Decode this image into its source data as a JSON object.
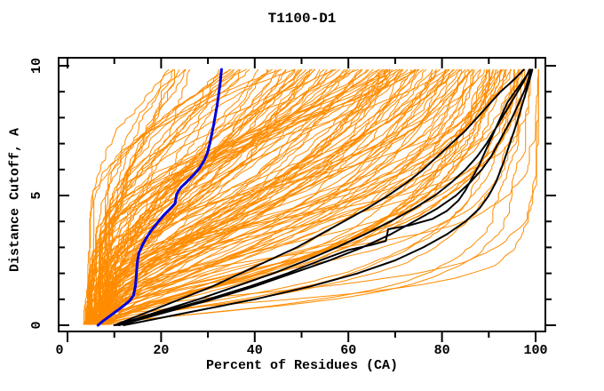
{
  "page": {
    "background": "#ffffff"
  },
  "chart_data": {
    "type": "line",
    "title": "T1100-D1",
    "xlabel": "Percent of Residues (CA)",
    "ylabel": "Distance Cutoff, A",
    "xlim": [
      -2,
      104
    ],
    "ylim": [
      -0.25,
      10.3
    ],
    "x_ticks_major": [
      0,
      20,
      40,
      60,
      80,
      100
    ],
    "x_tick_labels": [
      "0",
      "20",
      "40",
      "60",
      "80",
      "100"
    ],
    "x_ticks_minor": [
      10,
      30,
      50,
      70,
      90
    ],
    "y_ticks_major": [
      0,
      5,
      10
    ],
    "y_tick_labels": [
      "0",
      "5",
      "10"
    ],
    "y_ticks_minor": [
      1,
      2,
      3,
      4,
      6,
      7,
      8,
      9
    ],
    "grid": false,
    "legend": false,
    "frame_color": "#000000",
    "colors": {
      "ensemble": "#ff8c00",
      "highlight": "#000000",
      "reference": "#0000dd"
    },
    "series": [
      {
        "name": "black-model-curve-1",
        "color": "#000000",
        "width": 2,
        "points": [
          [
            10,
            0
          ],
          [
            20,
            0.5
          ],
          [
            30,
            1
          ],
          [
            39,
            1.5
          ],
          [
            47,
            2
          ],
          [
            54,
            2.5
          ],
          [
            60,
            2.9
          ],
          [
            65,
            3.1
          ],
          [
            68,
            3.25
          ],
          [
            68.5,
            3.7
          ],
          [
            73,
            3.85
          ],
          [
            78,
            4.1
          ],
          [
            81,
            4.4
          ],
          [
            83.5,
            4.8
          ],
          [
            85,
            5.2
          ],
          [
            86.5,
            5.7
          ],
          [
            88,
            6.2
          ],
          [
            89.5,
            6.8
          ],
          [
            91,
            7.4
          ],
          [
            92.5,
            8
          ],
          [
            94,
            8.6
          ],
          [
            96,
            9.1
          ],
          [
            98,
            9.6
          ],
          [
            98.8,
            9.85
          ]
        ]
      },
      {
        "name": "black-model-curve-2",
        "color": "#000000",
        "width": 2,
        "points": [
          [
            10,
            0
          ],
          [
            17,
            0.5
          ],
          [
            24,
            1
          ],
          [
            31,
            1.5
          ],
          [
            37,
            2
          ],
          [
            43,
            2.5
          ],
          [
            49,
            3
          ],
          [
            54,
            3.5
          ],
          [
            59,
            4
          ],
          [
            64,
            4.5
          ],
          [
            68.5,
            5
          ],
          [
            72.5,
            5.5
          ],
          [
            76,
            6
          ],
          [
            79,
            6.5
          ],
          [
            82,
            7
          ],
          [
            85,
            7.5
          ],
          [
            87.5,
            8
          ],
          [
            90,
            8.5
          ],
          [
            92.5,
            9
          ],
          [
            95,
            9.4
          ],
          [
            97.5,
            9.85
          ]
        ]
      },
      {
        "name": "black-model-curve-3",
        "color": "#000000",
        "width": 2,
        "points": [
          [
            11,
            0
          ],
          [
            21,
            0.5
          ],
          [
            31,
            1
          ],
          [
            40,
            1.5
          ],
          [
            48,
            2
          ],
          [
            56,
            2.5
          ],
          [
            63,
            3
          ],
          [
            69,
            3.5
          ],
          [
            74,
            4
          ],
          [
            79,
            4.5
          ],
          [
            83,
            5
          ],
          [
            86,
            5.5
          ],
          [
            88.5,
            6
          ],
          [
            90.5,
            6.5
          ],
          [
            92,
            7
          ],
          [
            93.5,
            7.5
          ],
          [
            95,
            8
          ],
          [
            96.5,
            8.6
          ],
          [
            98,
            9.2
          ],
          [
            99,
            9.85
          ]
        ]
      },
      {
        "name": "black-model-curve-4",
        "color": "#000000",
        "width": 2,
        "points": [
          [
            12,
            0
          ],
          [
            26,
            0.5
          ],
          [
            40,
            1
          ],
          [
            52,
            1.5
          ],
          [
            62,
            2
          ],
          [
            70,
            2.5
          ],
          [
            76,
            3
          ],
          [
            81,
            3.5
          ],
          [
            85,
            4
          ],
          [
            88,
            4.5
          ],
          [
            90,
            5
          ],
          [
            91.5,
            5.5
          ],
          [
            93,
            6.2
          ],
          [
            94.5,
            7
          ],
          [
            96,
            7.8
          ],
          [
            97.3,
            8.6
          ],
          [
            98.5,
            9.3
          ],
          [
            99.3,
            9.85
          ]
        ]
      },
      {
        "name": "black-model-curve-5",
        "color": "#000000",
        "width": 2,
        "points": [
          [
            10.5,
            0
          ],
          [
            19,
            0.5
          ],
          [
            28,
            1
          ],
          [
            36,
            1.5
          ],
          [
            44,
            2
          ],
          [
            51,
            2.5
          ],
          [
            57.5,
            3
          ],
          [
            63.5,
            3.5
          ],
          [
            69,
            4
          ],
          [
            74,
            4.5
          ],
          [
            78.5,
            5
          ],
          [
            82,
            5.5
          ],
          [
            85,
            6
          ],
          [
            87.5,
            6.5
          ],
          [
            89.5,
            7
          ],
          [
            91.5,
            7.6
          ],
          [
            93.5,
            8.2
          ],
          [
            95.5,
            8.8
          ],
          [
            97.5,
            9.4
          ],
          [
            98.7,
            9.85
          ]
        ]
      },
      {
        "name": "blue-reference-curve",
        "color": "#0000dd",
        "width": 3,
        "points": [
          [
            6.5,
            0
          ],
          [
            7.5,
            0.15
          ],
          [
            9,
            0.35
          ],
          [
            10.5,
            0.55
          ],
          [
            12,
            0.75
          ],
          [
            13.3,
            0.95
          ],
          [
            14.1,
            1.15
          ],
          [
            14.5,
            1.5
          ],
          [
            14.7,
            1.95
          ],
          [
            14.9,
            2.4
          ],
          [
            15.2,
            2.75
          ],
          [
            15.9,
            3.05
          ],
          [
            16.8,
            3.35
          ],
          [
            17.9,
            3.65
          ],
          [
            19.2,
            3.95
          ],
          [
            20.6,
            4.25
          ],
          [
            22,
            4.5
          ],
          [
            23,
            4.7
          ],
          [
            23.3,
            5.05
          ],
          [
            24.2,
            5.3
          ],
          [
            25.6,
            5.55
          ],
          [
            27,
            5.8
          ],
          [
            28.2,
            6.05
          ],
          [
            29.2,
            6.35
          ],
          [
            29.9,
            6.65
          ],
          [
            30.4,
            7
          ],
          [
            30.8,
            7.35
          ],
          [
            31.2,
            7.7
          ],
          [
            31.6,
            8.1
          ],
          [
            32,
            8.5
          ],
          [
            32.3,
            8.9
          ],
          [
            32.6,
            9.3
          ],
          [
            32.9,
            9.86
          ]
        ]
      }
    ],
    "ensemble": {
      "name": "orange-model-curves",
      "color": "#ff8c00",
      "width": 1,
      "count": 150,
      "seed": 11,
      "start_pct_range": [
        3.5,
        9.5
      ],
      "top_pct_range": [
        20,
        100.5
      ],
      "top_bias": 0.7,
      "sigma_range": [
        0.3,
        1.15
      ],
      "y_max": 9.86,
      "note": "Approximately 150 overlapping orange model curves; each is a monotonic cumulative curve from its start percent (at cutoff 0) to its top percent (at cutoff ~9.9), generated as a logistic CDF in log-distance with small jitter."
    }
  }
}
